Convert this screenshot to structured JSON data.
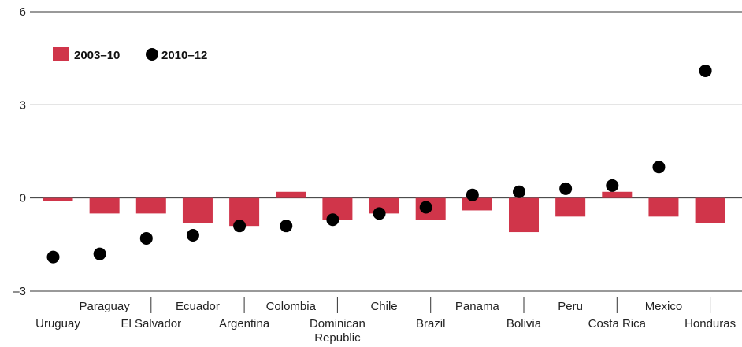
{
  "chart_data": {
    "type": "bar",
    "categories": [
      "Uruguay",
      "Paraguay",
      "El Salvador",
      "Ecuador",
      "Argentina",
      "Colombia",
      "Dominican Republic",
      "Chile",
      "Brazil",
      "Panama",
      "Bolivia",
      "Peru",
      "Costa Rica",
      "Mexico",
      "Honduras"
    ],
    "category_lines": [
      [
        "Uruguay"
      ],
      [
        "Paraguay"
      ],
      [
        "El Salvador"
      ],
      [
        "Ecuador"
      ],
      [
        "Argentina"
      ],
      [
        "Colombia"
      ],
      [
        "Dominican",
        "Republic"
      ],
      [
        "Chile"
      ],
      [
        "Brazil"
      ],
      [
        "Panama"
      ],
      [
        "Bolivia"
      ],
      [
        "Peru"
      ],
      [
        "Costa Rica"
      ],
      [
        "Mexico"
      ],
      [
        "Honduras"
      ]
    ],
    "series": [
      {
        "name": "2003–10",
        "kind": "bar",
        "color": "#d0354a",
        "values": [
          -0.1,
          -0.5,
          -0.5,
          -0.8,
          -0.9,
          0.2,
          -0.7,
          -0.5,
          -0.7,
          -0.4,
          -1.1,
          -0.6,
          0.2,
          -0.6,
          -0.8
        ]
      },
      {
        "name": "2010–12",
        "kind": "dot",
        "color": "#000000",
        "values": [
          -1.9,
          -1.8,
          -1.3,
          -1.2,
          -0.9,
          -0.9,
          -0.7,
          -0.5,
          -0.3,
          0.1,
          0.2,
          0.3,
          0.4,
          1.0,
          4.1
        ]
      }
    ],
    "ylim": [
      -3,
      6
    ],
    "yticks": [
      6,
      3,
      0,
      -3
    ],
    "ytick_labels": [
      "6",
      "3",
      "0",
      "–3"
    ],
    "grid": true,
    "legend_position": "top-left",
    "title": "",
    "xlabel": "",
    "ylabel": ""
  }
}
